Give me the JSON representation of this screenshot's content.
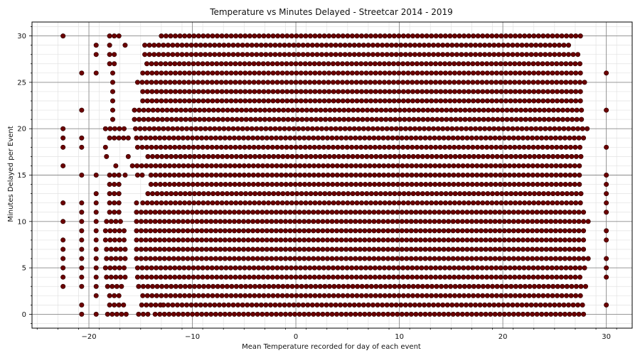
{
  "chart_data": {
    "type": "scatter",
    "title": "Temperature vs Minutes Delayed - Streetcar 2014 - 2019",
    "xlabel": "Mean Temperature recorded for day of each event",
    "ylabel": "Minutes Delayed per Event",
    "xlim": [
      -25.5,
      32.5
    ],
    "ylim": [
      -1.5,
      31.5
    ],
    "xticks": [
      -20,
      -10,
      0,
      10,
      20,
      30
    ],
    "yticks": [
      0,
      5,
      10,
      15,
      20,
      25,
      30
    ],
    "grid": "major and minor",
    "marker_color": "#6b0000",
    "marker_edge_color": "#2a0000",
    "series": [
      {
        "name": "",
        "description_of_density": "dense horizontal bands at each integer minute 0-30 across temperatures about -18 to 28",
        "rows": [
          {
            "y": 0,
            "ranges": [
              [
                -20.7,
                -20.7
              ],
              [
                -19.3,
                -19.3
              ],
              [
                -18.2,
                -16.4
              ],
              [
                -15.2,
                -14.0
              ],
              [
                -13.6,
                27.8
              ]
            ]
          },
          {
            "y": 1,
            "ranges": [
              [
                -20.7,
                -20.7
              ],
              [
                -18.0,
                -16.5
              ],
              [
                -14.9,
                -13.0
              ],
              [
                -12.8,
                27.8
              ],
              [
                30.0,
                30.0
              ]
            ]
          },
          {
            "y": 2,
            "ranges": [
              [
                -19.3,
                -19.3
              ],
              [
                -18.0,
                -16.8
              ],
              [
                -14.8,
                27.8
              ]
            ]
          },
          {
            "y": 3,
            "ranges": [
              [
                -22.5,
                -22.5
              ],
              [
                -20.7,
                -20.7
              ],
              [
                -19.3,
                -19.3
              ],
              [
                -18.2,
                -16.5
              ],
              [
                -15.2,
                28.3
              ]
            ]
          },
          {
            "y": 4,
            "ranges": [
              [
                -22.5,
                -22.5
              ],
              [
                -20.7,
                -20.7
              ],
              [
                -19.3,
                -19.3
              ],
              [
                -18.3,
                -16.5
              ],
              [
                -15.3,
                27.8
              ],
              [
                30.0,
                30.0
              ]
            ]
          },
          {
            "y": 5,
            "ranges": [
              [
                -22.5,
                -22.5
              ],
              [
                -20.7,
                -20.7
              ],
              [
                -19.3,
                -19.3
              ],
              [
                -18.4,
                -16.5
              ],
              [
                -15.3,
                28.3
              ],
              [
                30.0,
                30.0
              ]
            ]
          },
          {
            "y": 6,
            "ranges": [
              [
                -22.5,
                -22.5
              ],
              [
                -20.7,
                -20.7
              ],
              [
                -19.3,
                -19.3
              ],
              [
                -18.3,
                -16.5
              ],
              [
                -15.4,
                28.3
              ],
              [
                30.0,
                30.0
              ]
            ]
          },
          {
            "y": 7,
            "ranges": [
              [
                -22.5,
                -22.5
              ],
              [
                -20.7,
                -20.7
              ],
              [
                -19.3,
                -19.3
              ],
              [
                -18.3,
                -16.5
              ],
              [
                -15.4,
                28.0
              ]
            ]
          },
          {
            "y": 8,
            "ranges": [
              [
                -22.5,
                -22.5
              ],
              [
                -20.7,
                -20.7
              ],
              [
                -19.3,
                -19.3
              ],
              [
                -18.4,
                -16.5
              ],
              [
                -15.4,
                28.0
              ],
              [
                30.0,
                30.0
              ]
            ]
          },
          {
            "y": 9,
            "ranges": [
              [
                -20.7,
                -20.7
              ],
              [
                -19.3,
                -19.3
              ],
              [
                -18.4,
                -16.5
              ],
              [
                -15.4,
                28.0
              ],
              [
                30.0,
                30.0
              ]
            ]
          },
          {
            "y": 10,
            "ranges": [
              [
                -22.5,
                -22.5
              ],
              [
                -20.7,
                -20.7
              ],
              [
                -19.3,
                -19.3
              ],
              [
                -18.3,
                -16.7
              ],
              [
                -15.4,
                28.3
              ]
            ]
          },
          {
            "y": 11,
            "ranges": [
              [
                -20.7,
                -20.7
              ],
              [
                -19.3,
                -19.3
              ],
              [
                -18.0,
                -16.8
              ],
              [
                -15.4,
                27.8
              ],
              [
                30.0,
                30.0
              ]
            ]
          },
          {
            "y": 12,
            "ranges": [
              [
                -22.5,
                -22.5
              ],
              [
                -20.7,
                -20.7
              ],
              [
                -19.3,
                -19.3
              ],
              [
                -18.0,
                -16.8
              ],
              [
                -15.4,
                -15.3
              ],
              [
                -14.8,
                27.8
              ],
              [
                30.0,
                30.0
              ]
            ]
          },
          {
            "y": 13,
            "ranges": [
              [
                -19.3,
                -19.3
              ],
              [
                -18.0,
                -16.8
              ],
              [
                -14.3,
                27.8
              ],
              [
                30.0,
                30.0
              ]
            ]
          },
          {
            "y": 14,
            "ranges": [
              [
                -18.0,
                -16.8
              ],
              [
                -14.0,
                27.8
              ],
              [
                30.0,
                30.0
              ]
            ]
          },
          {
            "y": 15,
            "ranges": [
              [
                -20.7,
                -20.7
              ],
              [
                -19.3,
                -19.3
              ],
              [
                -18.0,
                -17.0
              ],
              [
                -16.5,
                -16.5
              ],
              [
                -15.3,
                -14.8
              ],
              [
                -14.0,
                27.8
              ],
              [
                30.0,
                30.0
              ]
            ]
          },
          {
            "y": 16,
            "ranges": [
              [
                -22.5,
                -22.5
              ],
              [
                -17.4,
                -17.3
              ],
              [
                -15.8,
                27.8
              ]
            ]
          },
          {
            "y": 17,
            "ranges": [
              [
                -18.3,
                -18.3
              ],
              [
                -16.2,
                -16.2
              ],
              [
                -14.3,
                27.8
              ]
            ]
          },
          {
            "y": 18,
            "ranges": [
              [
                -22.5,
                -22.5
              ],
              [
                -20.7,
                -20.7
              ],
              [
                -18.4,
                -18.0
              ],
              [
                -15.3,
                27.8
              ],
              [
                30.0,
                30.0
              ]
            ]
          },
          {
            "y": 19,
            "ranges": [
              [
                -22.5,
                -22.5
              ],
              [
                -20.7,
                -20.7
              ],
              [
                -18.0,
                -16.2
              ],
              [
                -15.4,
                28.0
              ]
            ]
          },
          {
            "y": 20,
            "ranges": [
              [
                -22.5,
                -22.5
              ],
              [
                -18.4,
                -16.5
              ],
              [
                -15.5,
                28.5
              ]
            ]
          },
          {
            "y": 21,
            "ranges": [
              [
                -17.7,
                -17.4
              ],
              [
                -15.6,
                27.8
              ]
            ]
          },
          {
            "y": 22,
            "ranges": [
              [
                -20.7,
                -20.7
              ],
              [
                -17.7,
                -17.4
              ],
              [
                -15.6,
                27.8
              ],
              [
                30.0,
                30.0
              ]
            ]
          },
          {
            "y": 23,
            "ranges": [
              [
                -17.7,
                -17.4
              ],
              [
                -14.8,
                27.8
              ]
            ]
          },
          {
            "y": 24,
            "ranges": [
              [
                -17.7,
                -17.4
              ],
              [
                -14.8,
                27.8
              ]
            ]
          },
          {
            "y": 25,
            "ranges": [
              [
                -17.7,
                -17.4
              ],
              [
                -15.3,
                28.3
              ]
            ]
          },
          {
            "y": 26,
            "ranges": [
              [
                -20.7,
                -20.7
              ],
              [
                -19.3,
                -19.3
              ],
              [
                -17.7,
                -17.4
              ],
              [
                -14.8,
                27.8
              ],
              [
                30.0,
                30.0
              ]
            ]
          },
          {
            "y": 27,
            "ranges": [
              [
                -18.0,
                -17.4
              ],
              [
                -14.4,
                27.6
              ]
            ]
          },
          {
            "y": 28,
            "ranges": [
              [
                -19.3,
                -19.3
              ],
              [
                -18.0,
                -17.4
              ],
              [
                -14.6,
                27.6
              ]
            ]
          },
          {
            "y": 29,
            "ranges": [
              [
                -19.3,
                -19.3
              ],
              [
                -18.0,
                -17.8
              ],
              [
                -16.5,
                -16.5
              ],
              [
                -14.6,
                26.5
              ]
            ]
          },
          {
            "y": 30,
            "ranges": [
              [
                -22.5,
                -22.5
              ],
              [
                -18.0,
                -17.0
              ],
              [
                -13.0,
                27.8
              ]
            ]
          }
        ]
      }
    ]
  }
}
